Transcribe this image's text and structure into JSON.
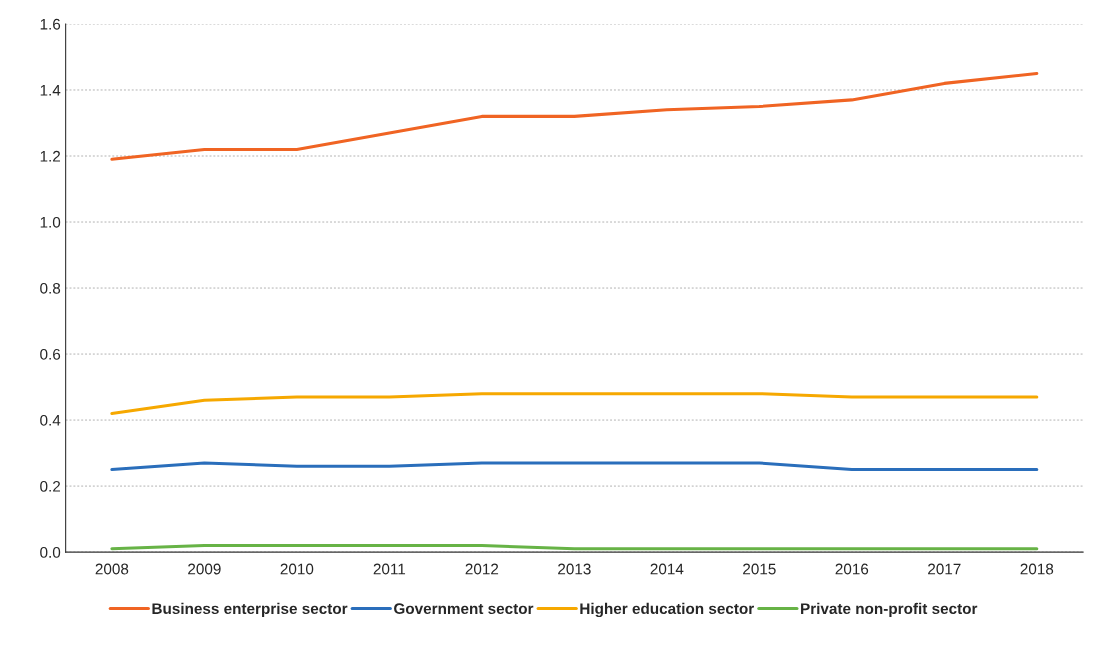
{
  "chart_data": {
    "type": "line",
    "categories": [
      "2008",
      "2009",
      "2010",
      "2011",
      "2012",
      "2013",
      "2014",
      "2015",
      "2016",
      "2017",
      "2018"
    ],
    "series": [
      {
        "name": "Business enterprise sector",
        "color": "#f06423",
        "values": [
          1.19,
          1.22,
          1.22,
          1.27,
          1.32,
          1.32,
          1.34,
          1.35,
          1.37,
          1.42,
          1.45
        ]
      },
      {
        "name": "Government sector",
        "color": "#2a6ebb",
        "values": [
          0.25,
          0.27,
          0.26,
          0.26,
          0.27,
          0.27,
          0.27,
          0.27,
          0.25,
          0.25,
          0.25
        ]
      },
      {
        "name": "Higher education sector",
        "color": "#f6a800",
        "values": [
          0.42,
          0.46,
          0.47,
          0.47,
          0.48,
          0.48,
          0.48,
          0.48,
          0.47,
          0.47,
          0.47
        ]
      },
      {
        "name": "Private non-profit sector",
        "color": "#67b346",
        "values": [
          0.01,
          0.02,
          0.02,
          0.02,
          0.02,
          0.01,
          0.01,
          0.01,
          0.01,
          0.01,
          0.01
        ]
      }
    ],
    "ylim": [
      0,
      1.6
    ],
    "yticks": [
      {
        "value": 0,
        "label": "0.0"
      },
      {
        "value": 0.2,
        "label": "0.2"
      },
      {
        "value": 0.4,
        "label": "0.4"
      },
      {
        "value": 0.6,
        "label": "0.6"
      },
      {
        "value": 0.8,
        "label": "0.8"
      },
      {
        "value": 1.0,
        "label": "1.0"
      },
      {
        "value": 1.2,
        "label": "1.2"
      },
      {
        "value": 1.4,
        "label": "1.4"
      },
      {
        "value": 1.6,
        "label": "1.6"
      }
    ],
    "grid": "y",
    "legend": "bottom",
    "line_style": "solid",
    "marker": "none"
  }
}
